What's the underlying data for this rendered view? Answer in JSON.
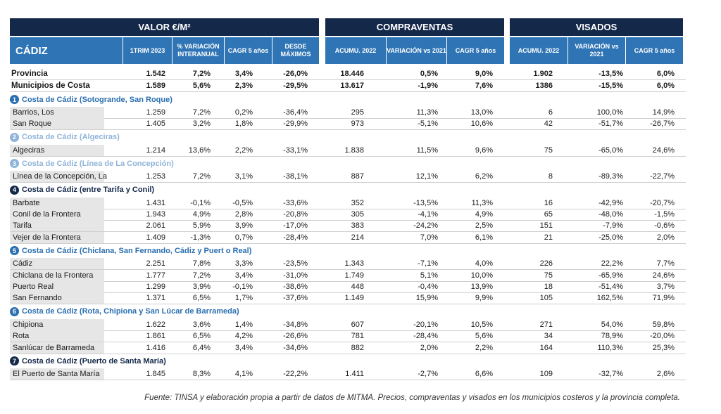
{
  "groups": {
    "valor": "VALOR €/M²",
    "compraventas": "COMPRAVENTAS",
    "visados": "VISADOS"
  },
  "columns": {
    "region": "CÁDIZ",
    "trim": "1TRIM 2023",
    "var_inter": "% VARIACIÓN INTERANUAL",
    "cagr_valor": "CAGR 5 años",
    "desde_max": "DESDE MÁXIMOS",
    "acum_comp": "ACUMU. 2022",
    "var_comp": "VARIACIÓN vs 2021",
    "cagr_comp": "CAGR 5 años",
    "acum_vis": "ACUMU. 2022",
    "var_vis": "VARIACIÓN vs 2021",
    "cagr_vis": "CAGR 5 años"
  },
  "totals": [
    {
      "name": "Provincia",
      "v": [
        "1.542",
        "7,2%",
        "3,4%",
        "-26,0%",
        "18.446",
        "0,5%",
        "9,0%",
        "1.902",
        "-13,5%",
        "6,0%"
      ]
    },
    {
      "name": "Municipios de Costa",
      "v": [
        "1.589",
        "5,6%",
        "2,3%",
        "-29,5%",
        "13.617",
        "-1,9%",
        "7,6%",
        "1386",
        "-15,5%",
        "6,0%"
      ]
    }
  ],
  "sections": [
    {
      "num": "1",
      "title": "Costa de Cádiz (Sotogrande, San Roque)",
      "rows": [
        {
          "name": "Barrios, Los",
          "v": [
            "1.259",
            "7,2%",
            "0,2%",
            "-36,4%",
            "295",
            "11,3%",
            "13,0%",
            "6",
            "100,0%",
            "14,9%"
          ]
        },
        {
          "name": "San Roque",
          "v": [
            "1.405",
            "3,2%",
            "1,8%",
            "-29,9%",
            "973",
            "-5,1%",
            "10,6%",
            "42",
            "-51,7%",
            "-26,7%"
          ]
        }
      ]
    },
    {
      "num": "2",
      "title": "Costa de Cádiz (Algeciras)",
      "rows": [
        {
          "name": "Algeciras",
          "v": [
            "1.214",
            "13,6%",
            "2,2%",
            "-33,1%",
            "1.838",
            "11,5%",
            "9,6%",
            "75",
            "-65,0%",
            "24,6%"
          ]
        }
      ]
    },
    {
      "num": "3",
      "title": "Costa de Cádiz (Línea de La Concepción)",
      "rows": [
        {
          "name": "Línea de la Concepción, La",
          "v": [
            "1.253",
            "7,2%",
            "3,1%",
            "-38,1%",
            "887",
            "12,1%",
            "6,2%",
            "8",
            "-89,3%",
            "-22,7%"
          ]
        }
      ]
    },
    {
      "num": "4",
      "title": "Costa de Cádiz (entre Tarifa y Conil)",
      "rows": [
        {
          "name": "Barbate",
          "v": [
            "1.431",
            "-0,1%",
            "-0,5%",
            "-33,6%",
            "352",
            "-13,5%",
            "11,3%",
            "16",
            "-42,9%",
            "-20,7%"
          ]
        },
        {
          "name": "Conil de la Frontera",
          "v": [
            "1.943",
            "4,9%",
            "2,8%",
            "-20,8%",
            "305",
            "-4,1%",
            "4,9%",
            "65",
            "-48,0%",
            "-1,5%"
          ]
        },
        {
          "name": "Tarifa",
          "v": [
            "2.061",
            "5,9%",
            "3,9%",
            "-17,0%",
            "383",
            "-24,2%",
            "2,5%",
            "151",
            "-7,9%",
            "-0,6%"
          ]
        },
        {
          "name": "Vejer de la Frontera",
          "v": [
            "1.409",
            "-1,3%",
            "0,7%",
            "-28,4%",
            "214",
            "7,0%",
            "6,1%",
            "21",
            "-25,0%",
            "2,0%"
          ]
        }
      ]
    },
    {
      "num": "5",
      "title": "Costa de Cádiz (Chiclana, San Fernando, Cádiz y Puert o Real)",
      "rows": [
        {
          "name": "Cádiz",
          "v": [
            "2.251",
            "7,8%",
            "3,3%",
            "-23,5%",
            "1.343",
            "-7,1%",
            "4,0%",
            "226",
            "22,2%",
            "7,7%"
          ]
        },
        {
          "name": "Chiclana de la Frontera",
          "v": [
            "1.777",
            "7,2%",
            "3,4%",
            "-31,0%",
            "1.749",
            "5,1%",
            "10,0%",
            "75",
            "-65,9%",
            "24,6%"
          ]
        },
        {
          "name": "Puerto Real",
          "v": [
            "1.299",
            "3,9%",
            "-0,1%",
            "-38,6%",
            "448",
            "-0,4%",
            "13,9%",
            "18",
            "-51,4%",
            "3,7%"
          ]
        },
        {
          "name": "San Fernando",
          "v": [
            "1.371",
            "6,5%",
            "1,7%",
            "-37,6%",
            "1.149",
            "15,9%",
            "9,9%",
            "105",
            "162,5%",
            "71,9%"
          ]
        }
      ]
    },
    {
      "num": "6",
      "title": "Costa de Cádiz  (Rota, Chipiona y San Lúcar de Barrameda)",
      "rows": [
        {
          "name": "Chipiona",
          "v": [
            "1.622",
            "3,6%",
            "1,4%",
            "-34,8%",
            "607",
            "-20,1%",
            "10,5%",
            "271",
            "54,0%",
            "59,8%"
          ]
        },
        {
          "name": "Rota",
          "v": [
            "1.861",
            "6,5%",
            "4,2%",
            "-26,6%",
            "781",
            "-28,4%",
            "5,6%",
            "34",
            "78,9%",
            "-20,0%"
          ]
        },
        {
          "name": "Sanlúcar de Barrameda",
          "v": [
            "1.416",
            "6,4%",
            "3,4%",
            "-34,6%",
            "882",
            "2,0%",
            "2,2%",
            "164",
            "110,3%",
            "25,3%"
          ]
        }
      ]
    },
    {
      "num": "7",
      "title": "Costa de Cádiz (Puerto de Santa María)",
      "rows": [
        {
          "name": "El Puerto de Santa María",
          "v": [
            "1.845",
            "8,3%",
            "4,1%",
            "-22,2%",
            "1.411",
            "-2,7%",
            "6,6%",
            "109",
            "-32,7%",
            "2,6%"
          ]
        }
      ]
    }
  ],
  "source": "Fuente: TINSA y elaboración propia a partir de datos de MITMA. Precios, compraventas y visados en los municipios costeros y la provincia completa."
}
